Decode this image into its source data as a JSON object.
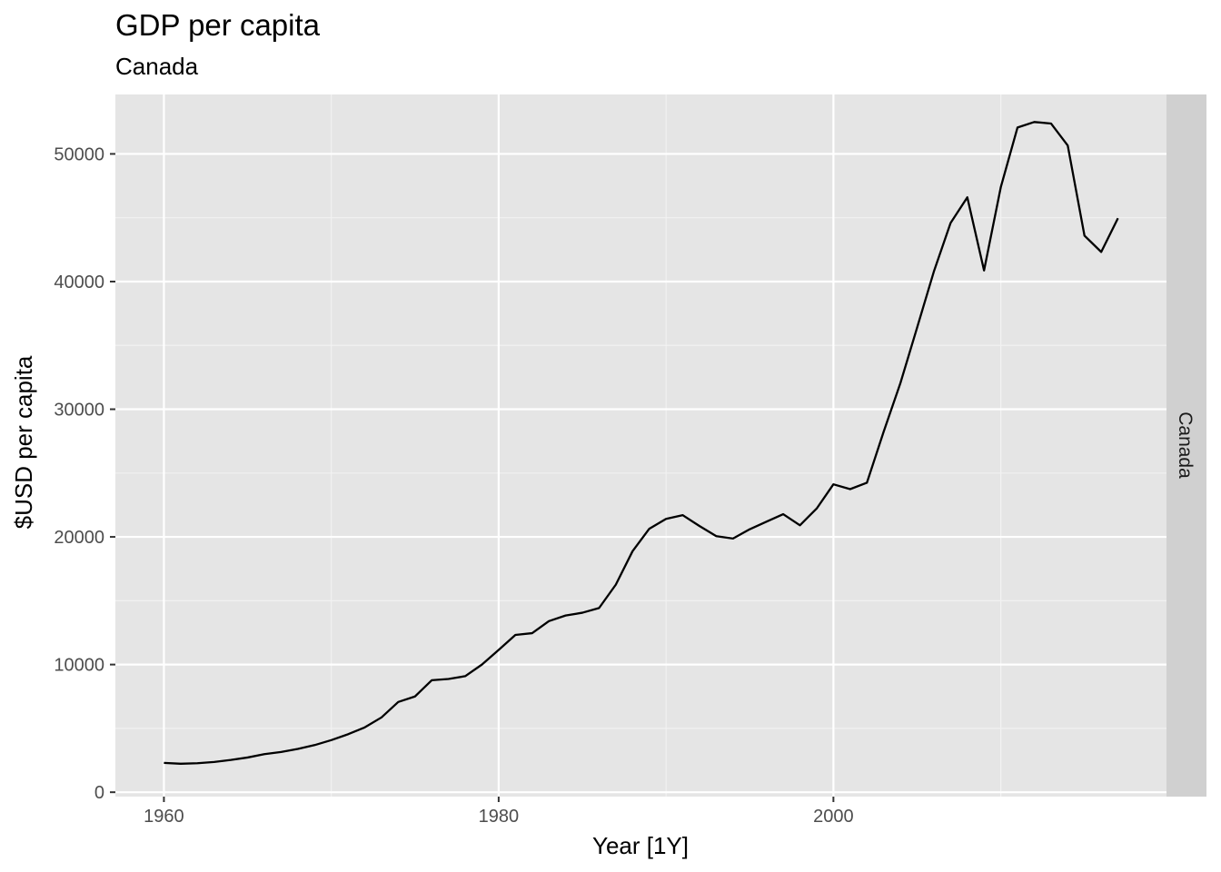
{
  "chart_data": {
    "type": "line",
    "title": "GDP per capita",
    "subtitle": "Canada",
    "xlabel": "Year [1Y]",
    "ylabel": "$USD per capita",
    "facet_label": "Canada",
    "xlim": [
      1957.1,
      2019.9
    ],
    "ylim": [
      0,
      52500
    ],
    "x_ticks": [
      1960,
      1980,
      2000
    ],
    "x_tick_labels": [
      "1960",
      "1980",
      "2000"
    ],
    "x_minor_ticks": [
      1970,
      1990,
      2010
    ],
    "y_ticks": [
      0,
      10000,
      20000,
      30000,
      40000,
      50000
    ],
    "y_tick_labels": [
      "0",
      "10000",
      "20000",
      "30000",
      "40000",
      "50000"
    ],
    "y_minor_ticks": [
      5000,
      15000,
      25000,
      35000,
      45000
    ],
    "grid": true,
    "colors": {
      "panel_background": "#e5e5e5",
      "grid_major": "#ffffff",
      "strip_background": "#d0d0d0",
      "line": "#000000",
      "tick": "#333333"
    },
    "series": [
      {
        "x": [
          1960,
          1961,
          1962,
          1963,
          1964,
          1965,
          1966,
          1967,
          1968,
          1969,
          1970,
          1971,
          1972,
          1973,
          1974,
          1975,
          1976,
          1977,
          1978,
          1979,
          1980,
          1981,
          1982,
          1983,
          1984,
          1985,
          1986,
          1987,
          1988,
          1989,
          1990,
          1991,
          1992,
          1993,
          1994,
          1995,
          1996,
          1997,
          1998,
          1999,
          2000,
          2001,
          2002,
          2003,
          2004,
          2005,
          2006,
          2007,
          2008,
          2009,
          2010,
          2011,
          2012,
          2013,
          2014,
          2015,
          2016,
          2017
        ],
        "values": [
          2300,
          2230,
          2270,
          2370,
          2530,
          2720,
          2980,
          3150,
          3390,
          3690,
          4080,
          4540,
          5080,
          5860,
          7070,
          7500,
          8770,
          8870,
          9090,
          10000,
          11150,
          12320,
          12460,
          13400,
          13840,
          14060,
          14430,
          16260,
          18880,
          20640,
          21410,
          21700,
          20850,
          20060,
          19870,
          20600,
          21190,
          21780,
          20910,
          22220,
          24120,
          23740,
          24240,
          28230,
          32040,
          36390,
          40780,
          44590,
          46600,
          40870,
          47390,
          52070,
          52500,
          52380,
          50660,
          43600,
          42320,
          44960
        ]
      }
    ]
  }
}
